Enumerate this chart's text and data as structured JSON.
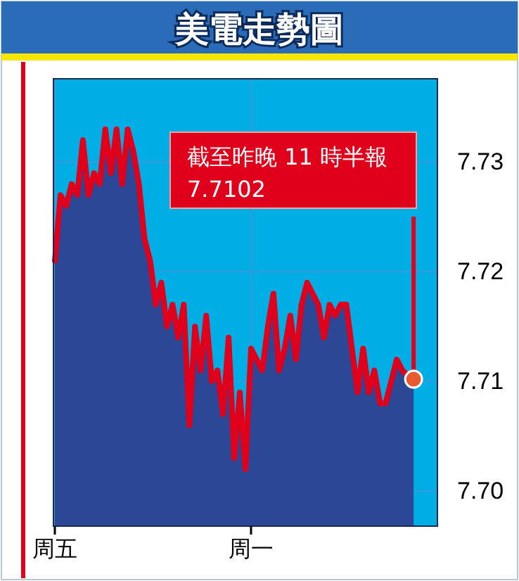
{
  "chart_data": {
    "type": "area",
    "title": "美電走勢圖",
    "categories": [
      "周五",
      null,
      null,
      null,
      null,
      null,
      null,
      null,
      null,
      null,
      null,
      null,
      null,
      null,
      null,
      null,
      null,
      null,
      null,
      null,
      null,
      null,
      null,
      null,
      null,
      null,
      null,
      null,
      null,
      null,
      null,
      null,
      null,
      null,
      null,
      "周一",
      null,
      null,
      null,
      null,
      null,
      null,
      null,
      null,
      null,
      null,
      null,
      null,
      null,
      null,
      null,
      null,
      null,
      null,
      null,
      null,
      null,
      null,
      null,
      null,
      null,
      null,
      null,
      null,
      null,
      null,
      null,
      null,
      null
    ],
    "series": [
      {
        "color": "#e0001b",
        "values": [
          7.721,
          7.727,
          7.726,
          7.728,
          7.727,
          7.732,
          7.727,
          7.729,
          7.728,
          7.733,
          7.729,
          7.733,
          7.728,
          7.733,
          7.731,
          7.728,
          7.723,
          7.721,
          7.717,
          7.719,
          7.715,
          7.717,
          7.714,
          7.717,
          7.706,
          7.715,
          7.711,
          7.716,
          7.71,
          7.711,
          7.707,
          7.714,
          7.703,
          7.709,
          7.702,
          7.713,
          7.712,
          7.711,
          7.715,
          7.718,
          7.711,
          7.713,
          7.716,
          7.712,
          7.717,
          7.719,
          7.718,
          7.717,
          7.714,
          7.717,
          7.716,
          7.717,
          7.717,
          7.713,
          7.709,
          7.713,
          7.709,
          7.711,
          7.708,
          7.708,
          7.71,
          7.712,
          7.711,
          7.7105,
          7.7102,
          null,
          null,
          null,
          null
        ]
      }
    ],
    "ylim": [
      7.6968,
      7.7376
    ],
    "yticks": [
      {
        "value": 7.7,
        "label": "7.70"
      },
      7.71,
      7.72,
      7.73
    ],
    "grid": true,
    "annotations": [
      "截至昨晚 11 時半報 7.7102"
    ]
  }
}
